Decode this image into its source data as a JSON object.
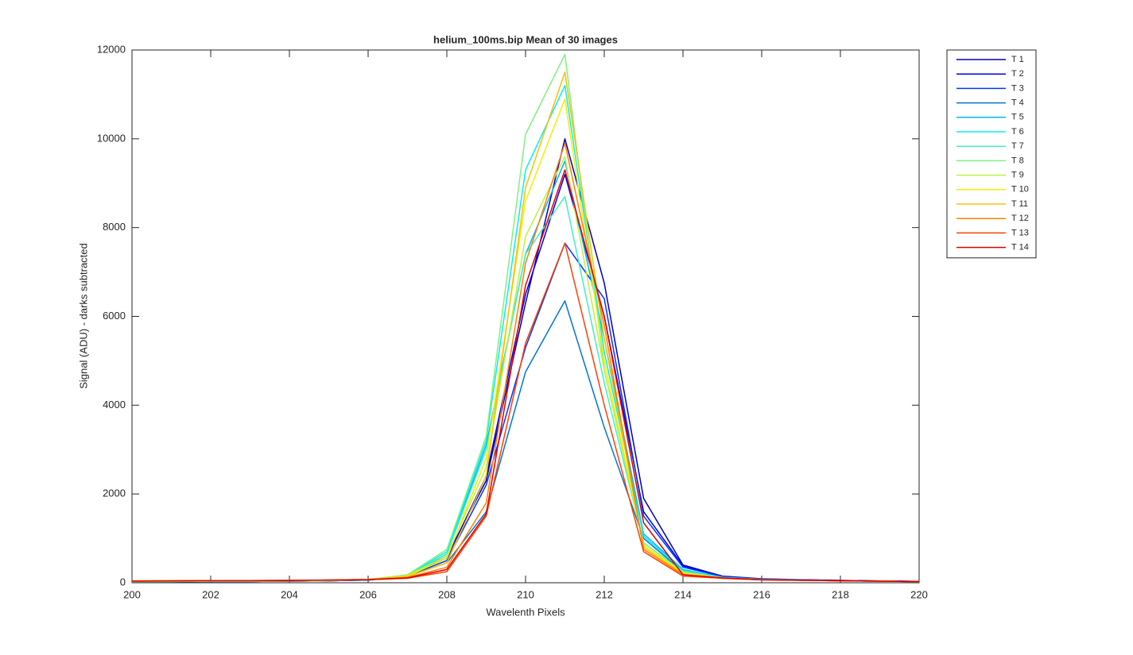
{
  "chart_data": {
    "type": "line",
    "title": "helium_100ms.bip  Mean of 30 images",
    "xlabel": "Wavelenth Pixels",
    "ylabel": "Signal (ADU) - darks subtracted",
    "x": [
      200,
      201,
      202,
      203,
      204,
      205,
      206,
      207,
      208,
      209,
      210,
      211,
      212,
      213,
      214,
      215,
      216,
      217,
      218,
      219,
      220
    ],
    "xlim": [
      200,
      220
    ],
    "xticks": [
      200,
      202,
      204,
      206,
      208,
      210,
      212,
      214,
      216,
      218,
      220
    ],
    "ylim": [
      0,
      12000
    ],
    "yticks": [
      0,
      2000,
      4000,
      6000,
      8000,
      10000,
      12000
    ],
    "grid": false,
    "box": true,
    "legend": "outside-northeast",
    "series": [
      {
        "name": "T 1",
        "color": "#0000b4",
        "values": [
          20,
          25,
          30,
          30,
          35,
          45,
          60,
          170,
          600,
          2300,
          6300,
          10000,
          6750,
          1900,
          400,
          150,
          90,
          70,
          55,
          40,
          30
        ]
      },
      {
        "name": "T 2",
        "color": "#0000e6",
        "values": [
          20,
          25,
          30,
          30,
          35,
          45,
          60,
          160,
          550,
          2400,
          6500,
          9200,
          6000,
          1600,
          380,
          140,
          85,
          65,
          50,
          40,
          30
        ]
      },
      {
        "name": "T 3",
        "color": "#0034ff",
        "values": [
          20,
          25,
          30,
          30,
          35,
          45,
          60,
          150,
          500,
          2200,
          5300,
          7650,
          6400,
          1500,
          350,
          140,
          80,
          65,
          50,
          38,
          28
        ]
      },
      {
        "name": "T 4",
        "color": "#0074d4",
        "values": [
          25,
          30,
          30,
          35,
          40,
          50,
          65,
          140,
          450,
          1600,
          4750,
          6350,
          3500,
          1000,
          250,
          120,
          75,
          60,
          45,
          35,
          28
        ]
      },
      {
        "name": "T 5",
        "color": "#00b4ff",
        "values": [
          25,
          30,
          35,
          35,
          40,
          50,
          65,
          160,
          650,
          3100,
          7400,
          9500,
          5500,
          1100,
          300,
          120,
          75,
          60,
          45,
          35,
          28
        ]
      },
      {
        "name": "T 6",
        "color": "#00f0f0",
        "values": [
          25,
          30,
          35,
          35,
          40,
          50,
          70,
          170,
          700,
          3200,
          9300,
          11200,
          5200,
          1050,
          280,
          120,
          75,
          60,
          45,
          35,
          28
        ]
      },
      {
        "name": "T 7",
        "color": "#40f0c0",
        "values": [
          25,
          30,
          35,
          35,
          40,
          50,
          70,
          160,
          650,
          3000,
          7400,
          8700,
          4500,
          900,
          250,
          110,
          70,
          55,
          45,
          35,
          28
        ]
      },
      {
        "name": "T 8",
        "color": "#80f080",
        "values": [
          25,
          30,
          35,
          35,
          40,
          50,
          75,
          180,
          750,
          3300,
          10100,
          11900,
          4800,
          900,
          250,
          110,
          70,
          55,
          45,
          35,
          28
        ]
      },
      {
        "name": "T 9",
        "color": "#c0f040",
        "values": [
          30,
          35,
          40,
          40,
          45,
          55,
          75,
          160,
          600,
          2600,
          7800,
          9600,
          4800,
          850,
          220,
          110,
          70,
          55,
          45,
          35,
          28
        ]
      },
      {
        "name": "T 10",
        "color": "#f0f000",
        "values": [
          30,
          35,
          40,
          40,
          45,
          55,
          75,
          150,
          550,
          2800,
          8600,
          10900,
          5000,
          850,
          220,
          110,
          70,
          55,
          45,
          35,
          28
        ]
      },
      {
        "name": "T 11",
        "color": "#ffbe00",
        "values": [
          35,
          40,
          45,
          45,
          50,
          60,
          75,
          140,
          450,
          2400,
          8900,
          11500,
          5500,
          800,
          200,
          100,
          65,
          55,
          45,
          35,
          28
        ]
      },
      {
        "name": "T 12",
        "color": "#ff8000",
        "values": [
          40,
          45,
          50,
          50,
          55,
          60,
          75,
          120,
          350,
          1800,
          7200,
          9900,
          5800,
          750,
          180,
          100,
          65,
          55,
          45,
          35,
          28
        ]
      },
      {
        "name": "T 13",
        "color": "#ff4000",
        "values": [
          40,
          45,
          50,
          50,
          55,
          60,
          70,
          100,
          250,
          1500,
          5400,
          7650,
          4000,
          700,
          150,
          100,
          65,
          55,
          45,
          35,
          28
        ]
      },
      {
        "name": "T 14",
        "color": "#e00000",
        "values": [
          35,
          40,
          45,
          45,
          50,
          60,
          70,
          110,
          300,
          1550,
          6700,
          9300,
          6000,
          1350,
          180,
          110,
          70,
          55,
          45,
          35,
          28
        ]
      }
    ]
  }
}
